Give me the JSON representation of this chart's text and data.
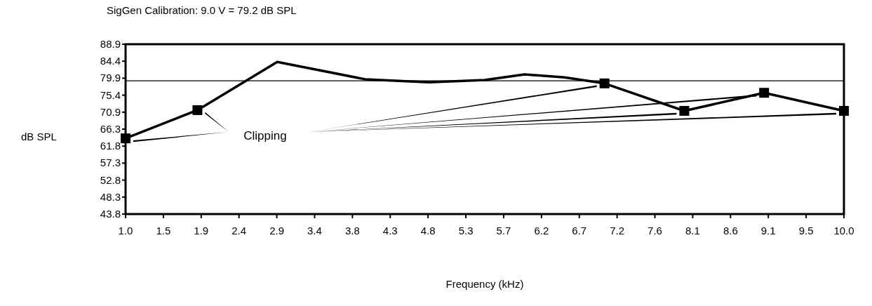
{
  "chart_data": {
    "type": "line",
    "title": "SigGen Calibration: 9.0 V = 79.2 dB SPL",
    "xlabel": "Frequency (kHz)",
    "ylabel": "dB SPL",
    "series": [
      {
        "color": "#000000",
        "marker": "none",
        "x": [
          1.0,
          1.9,
          2.9,
          4.0,
          4.8,
          5.5,
          6.0,
          6.5,
          7.0,
          8.0,
          9.0,
          10.0
        ],
        "values": [
          63.9,
          71.4,
          84.2,
          79.6,
          78.8,
          79.4,
          80.9,
          80.1,
          78.5,
          71.2,
          76.0,
          71.2
        ]
      },
      {
        "type": "scatter",
        "color": "#000000",
        "marker": "square",
        "x": [
          1.0,
          1.9,
          7.0,
          8.0,
          9.0,
          10.0
        ],
        "values": [
          63.9,
          71.4,
          78.5,
          71.2,
          76.0,
          71.2
        ]
      }
    ],
    "annotations": [
      "Clipping"
    ],
    "ref_lines": [
      {
        "axis": "y",
        "value": 79.2,
        "color": "#000000"
      }
    ],
    "xlim": [
      1.0,
      10.0
    ],
    "xticks": [
      {
        "value": 1.0,
        "label": "1.0"
      },
      {
        "value": 1.4737,
        "label": "1.5"
      },
      {
        "value": 1.9474,
        "label": "1.9"
      },
      {
        "value": 2.4211,
        "label": "2.4"
      },
      {
        "value": 2.8947,
        "label": "2.9"
      },
      {
        "value": 3.3684,
        "label": "3.4"
      },
      {
        "value": 3.8421,
        "label": "3.8"
      },
      {
        "value": 4.3158,
        "label": "4.3"
      },
      {
        "value": 4.7895,
        "label": "4.8"
      },
      {
        "value": 5.2632,
        "label": "5.3"
      },
      {
        "value": 5.7368,
        "label": "5.7"
      },
      {
        "value": 6.2105,
        "label": "6.2"
      },
      {
        "value": 6.6842,
        "label": "6.7"
      },
      {
        "value": 7.1579,
        "label": "7.2"
      },
      {
        "value": 7.6316,
        "label": "7.6"
      },
      {
        "value": 8.1053,
        "label": "8.1"
      },
      {
        "value": 8.5789,
        "label": "8.6"
      },
      {
        "value": 9.0526,
        "label": "9.1"
      },
      {
        "value": 9.5263,
        "label": "9.5"
      },
      {
        "value": 10.0,
        "label": "10.0"
      }
    ],
    "ylim": [
      43.8,
      88.9
    ],
    "yticks": [
      {
        "value": 43.8,
        "label": "43.8"
      },
      {
        "value": 48.31,
        "label": "48.3"
      },
      {
        "value": 52.82,
        "label": "52.8"
      },
      {
        "value": 57.33,
        "label": "57.3"
      },
      {
        "value": 61.84,
        "label": "61.8"
      },
      {
        "value": 66.35,
        "label": "66.3"
      },
      {
        "value": 70.86,
        "label": "70.9"
      },
      {
        "value": 75.37,
        "label": "75.4"
      },
      {
        "value": 79.88,
        "label": "79.9"
      },
      {
        "value": 84.39,
        "label": "84.4"
      },
      {
        "value": 88.9,
        "label": "88.9"
      }
    ],
    "grid": false
  }
}
